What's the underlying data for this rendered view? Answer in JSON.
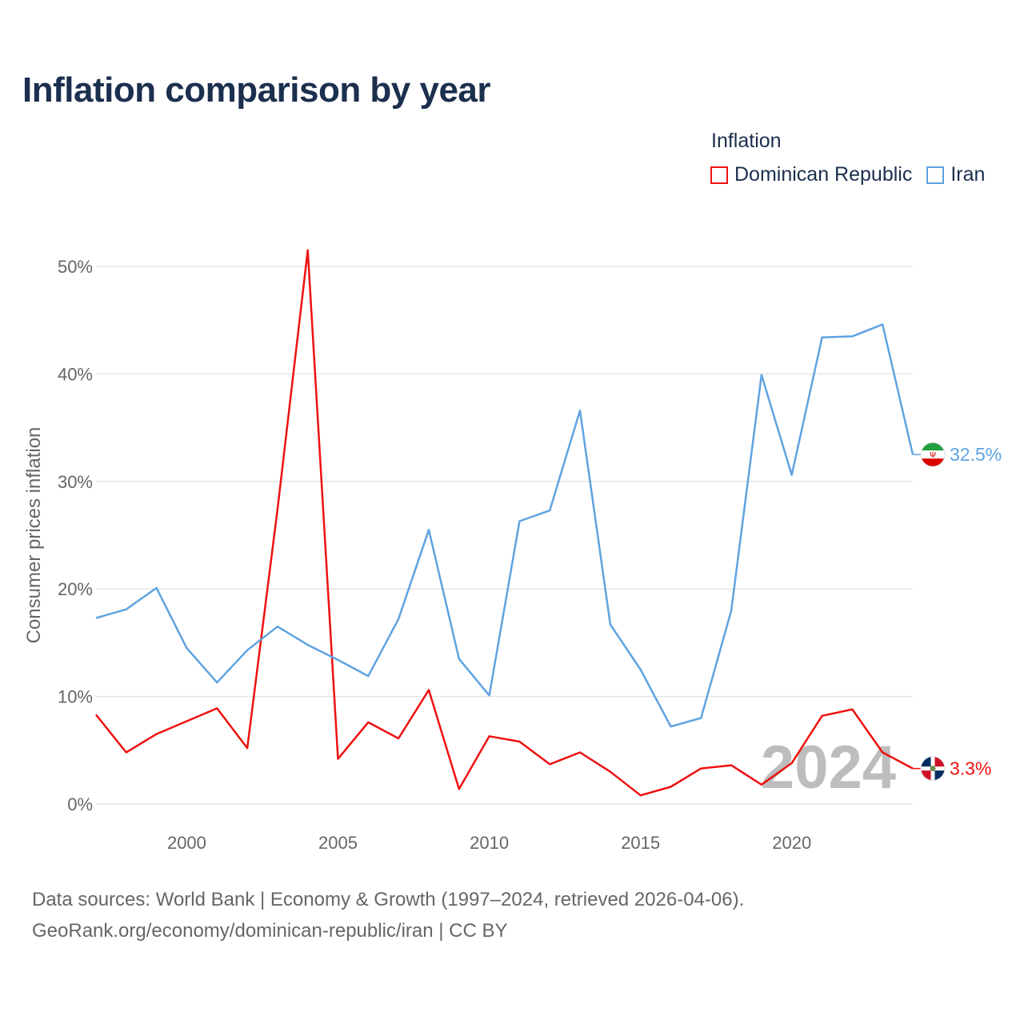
{
  "page": {
    "title": "Inflation comparison by year",
    "legend_title": "Inflation",
    "footer_line1": "Data sources: World Bank | Economy & Growth (1997–2024, retrieved 2026-04-06).",
    "footer_line2": "GeoRank.org/economy/dominican-republic/iran | CC BY"
  },
  "chart_data": {
    "type": "line",
    "title": "Inflation comparison by year",
    "xlabel": "",
    "ylabel": "Consumer prices inflation",
    "xlim": [
      1997,
      2024
    ],
    "ylim": [
      0,
      50
    ],
    "x_ticks": [
      2000,
      2005,
      2010,
      2015,
      2020
    ],
    "y_ticks": [
      0,
      10,
      20,
      30,
      40,
      50
    ],
    "y_tick_labels": [
      "0%",
      "10%",
      "20%",
      "30%",
      "40%",
      "50%"
    ],
    "grid": true,
    "legend_position": "top-right",
    "watermark_year": "2024",
    "x": [
      1997,
      1998,
      1999,
      2000,
      2001,
      2002,
      2003,
      2004,
      2005,
      2006,
      2007,
      2008,
      2009,
      2010,
      2011,
      2012,
      2013,
      2014,
      2015,
      2016,
      2017,
      2018,
      2019,
      2020,
      2021,
      2022,
      2023,
      2024
    ],
    "series": [
      {
        "name": "Dominican Republic",
        "color": "#ee1111",
        "end_label": "3.3%",
        "flag": "dominican-republic-flag",
        "values": [
          8.3,
          4.8,
          6.5,
          7.7,
          8.9,
          5.2,
          27.4,
          51.5,
          4.2,
          7.6,
          6.1,
          10.6,
          1.4,
          6.3,
          5.8,
          3.7,
          4.8,
          3.0,
          0.8,
          1.6,
          3.3,
          3.6,
          1.8,
          3.8,
          8.2,
          8.8,
          4.8,
          3.3
        ]
      },
      {
        "name": "Iran",
        "color": "#5fa3e0",
        "end_label": "32.5%",
        "flag": "iran-flag",
        "values": [
          17.3,
          18.1,
          20.1,
          14.5,
          11.3,
          14.3,
          16.5,
          14.8,
          13.4,
          11.9,
          17.2,
          25.5,
          13.5,
          10.1,
          26.3,
          27.3,
          36.6,
          16.7,
          12.5,
          7.2,
          8.0,
          18.0,
          39.9,
          30.6,
          43.4,
          43.5,
          44.6,
          32.5
        ]
      }
    ]
  }
}
